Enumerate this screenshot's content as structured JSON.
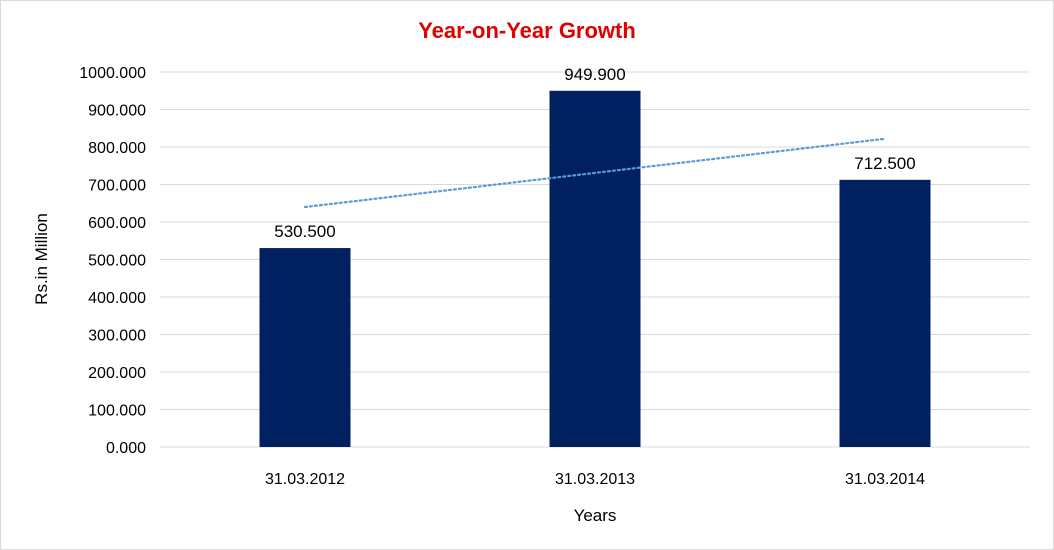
{
  "chart_data": {
    "type": "bar",
    "title": "Year-on-Year Growth",
    "xlabel": "Years",
    "ylabel": "Rs.in Million",
    "categories": [
      "31.03.2012",
      "31.03.2013",
      "31.03.2014"
    ],
    "values": [
      530.5,
      949.9,
      712.5
    ],
    "data_labels": [
      "530.500",
      "949.900",
      "712.500"
    ],
    "ylim": [
      0,
      1000
    ],
    "yticks": [
      0,
      100,
      200,
      300,
      400,
      500,
      600,
      700,
      800,
      900,
      1000
    ],
    "ytick_labels": [
      "0.000",
      "100.000",
      "200.000",
      "300.000",
      "400.000",
      "500.000",
      "600.000",
      "700.000",
      "800.000",
      "900.000",
      "1000.000"
    ],
    "grid": true,
    "legend": "none",
    "trendline": {
      "type": "linear",
      "style": "dotted"
    },
    "colors": {
      "bar": "#002060",
      "title": "#e00000",
      "trendline": "#5b9bd5",
      "grid": "#d9d9d9"
    }
  }
}
